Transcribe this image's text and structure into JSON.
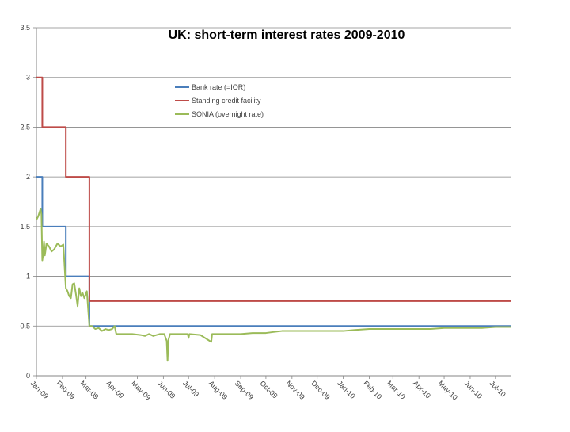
{
  "chart_data": {
    "type": "line",
    "title": "UK: short-term interest rates 2009-2010",
    "xlabel": "",
    "ylabel": "",
    "ylim": [
      0,
      3.5
    ],
    "yticks": [
      "0",
      "0.5",
      "1",
      "1.5",
      "2",
      "2.5",
      "3",
      "3.5"
    ],
    "xlim": [
      "2009-01-01",
      "2010-07-20"
    ],
    "xticks": [
      {
        "date": "2009-01-01",
        "label": "Jan-09"
      },
      {
        "date": "2009-02-01",
        "label": "Feb-09"
      },
      {
        "date": "2009-03-01",
        "label": "Mar-09"
      },
      {
        "date": "2009-04-01",
        "label": "Apr-09"
      },
      {
        "date": "2009-05-01",
        "label": "May-09"
      },
      {
        "date": "2009-06-01",
        "label": "Jun-09"
      },
      {
        "date": "2009-07-01",
        "label": "Jul-09"
      },
      {
        "date": "2009-08-01",
        "label": "Aug-09"
      },
      {
        "date": "2009-09-01",
        "label": "Sep-09"
      },
      {
        "date": "2009-10-01",
        "label": "Oct-09"
      },
      {
        "date": "2009-11-01",
        "label": "Nov-09"
      },
      {
        "date": "2009-12-01",
        "label": "Dec-09"
      },
      {
        "date": "2010-01-01",
        "label": "Jan-10"
      },
      {
        "date": "2010-02-01",
        "label": "Feb-10"
      },
      {
        "date": "2010-03-01",
        "label": "Mar-10"
      },
      {
        "date": "2010-04-01",
        "label": "Apr-10"
      },
      {
        "date": "2010-05-01",
        "label": "May-10"
      },
      {
        "date": "2010-06-01",
        "label": "Jun-10"
      },
      {
        "date": "2010-07-01",
        "label": "Jul-10"
      }
    ],
    "grid": true,
    "legend": "top-center",
    "series": [
      {
        "name": "Bank rate (=IOR)",
        "color": "#4a7ebb",
        "step": true,
        "points": [
          [
            "2009-01-01",
            2.0
          ],
          [
            "2009-01-08",
            1.5
          ],
          [
            "2009-02-05",
            1.0
          ],
          [
            "2009-03-05",
            0.5
          ],
          [
            "2010-07-20",
            0.5
          ]
        ]
      },
      {
        "name": "Standing credit facility",
        "color": "#be4b48",
        "step": true,
        "points": [
          [
            "2009-01-01",
            3.0
          ],
          [
            "2009-01-08",
            2.5
          ],
          [
            "2009-02-05",
            2.0
          ],
          [
            "2009-03-05",
            0.75
          ],
          [
            "2010-07-20",
            0.75
          ]
        ]
      },
      {
        "name": "SONIA (overnight rate)",
        "color": "#9bbb59",
        "step": false,
        "points": [
          [
            "2009-01-01",
            1.57
          ],
          [
            "2009-01-03",
            1.6
          ],
          [
            "2009-01-06",
            1.68
          ],
          [
            "2009-01-07",
            1.62
          ],
          [
            "2009-01-08",
            1.16
          ],
          [
            "2009-01-09",
            1.22
          ],
          [
            "2009-01-10",
            1.35
          ],
          [
            "2009-01-11",
            1.21
          ],
          [
            "2009-01-13",
            1.33
          ],
          [
            "2009-01-16",
            1.3
          ],
          [
            "2009-01-19",
            1.25
          ],
          [
            "2009-01-22",
            1.27
          ],
          [
            "2009-01-26",
            1.33
          ],
          [
            "2009-01-30",
            1.3
          ],
          [
            "2009-02-02",
            1.32
          ],
          [
            "2009-02-05",
            0.88
          ],
          [
            "2009-02-07",
            0.85
          ],
          [
            "2009-02-09",
            0.8
          ],
          [
            "2009-02-11",
            0.78
          ],
          [
            "2009-02-13",
            0.92
          ],
          [
            "2009-02-15",
            0.93
          ],
          [
            "2009-02-17",
            0.82
          ],
          [
            "2009-02-19",
            0.7
          ],
          [
            "2009-02-21",
            0.88
          ],
          [
            "2009-02-23",
            0.8
          ],
          [
            "2009-02-25",
            0.83
          ],
          [
            "2009-02-27",
            0.78
          ],
          [
            "2009-03-02",
            0.85
          ],
          [
            "2009-03-05",
            0.5
          ],
          [
            "2009-03-08",
            0.5
          ],
          [
            "2009-03-12",
            0.47
          ],
          [
            "2009-03-16",
            0.48
          ],
          [
            "2009-03-20",
            0.45
          ],
          [
            "2009-03-24",
            0.47
          ],
          [
            "2009-03-28",
            0.46
          ],
          [
            "2009-04-01",
            0.47
          ],
          [
            "2009-04-04",
            0.5
          ],
          [
            "2009-04-06",
            0.42
          ],
          [
            "2009-04-15",
            0.42
          ],
          [
            "2009-04-25",
            0.42
          ],
          [
            "2009-05-05",
            0.41
          ],
          [
            "2009-05-10",
            0.4
          ],
          [
            "2009-05-15",
            0.42
          ],
          [
            "2009-05-20",
            0.4
          ],
          [
            "2009-05-28",
            0.42
          ],
          [
            "2009-06-02",
            0.42
          ],
          [
            "2009-06-05",
            0.35
          ],
          [
            "2009-06-06",
            0.15
          ],
          [
            "2009-06-07",
            0.36
          ],
          [
            "2009-06-09",
            0.42
          ],
          [
            "2009-06-20",
            0.42
          ],
          [
            "2009-06-30",
            0.42
          ],
          [
            "2009-07-01",
            0.38
          ],
          [
            "2009-07-02",
            0.42
          ],
          [
            "2009-07-15",
            0.41
          ],
          [
            "2009-07-28",
            0.34
          ],
          [
            "2009-07-29",
            0.42
          ],
          [
            "2009-08-15",
            0.42
          ],
          [
            "2009-09-01",
            0.42
          ],
          [
            "2009-09-15",
            0.43
          ],
          [
            "2009-10-01",
            0.43
          ],
          [
            "2009-10-10",
            0.44
          ],
          [
            "2009-10-20",
            0.45
          ],
          [
            "2009-11-01",
            0.45
          ],
          [
            "2009-11-15",
            0.45
          ],
          [
            "2009-12-01",
            0.45
          ],
          [
            "2009-12-15",
            0.45
          ],
          [
            "2010-01-01",
            0.45
          ],
          [
            "2010-01-15",
            0.46
          ],
          [
            "2010-02-01",
            0.47
          ],
          [
            "2010-02-15",
            0.47
          ],
          [
            "2010-03-01",
            0.47
          ],
          [
            "2010-03-15",
            0.47
          ],
          [
            "2010-04-01",
            0.47
          ],
          [
            "2010-04-15",
            0.47
          ],
          [
            "2010-05-01",
            0.48
          ],
          [
            "2010-05-15",
            0.48
          ],
          [
            "2010-06-01",
            0.48
          ],
          [
            "2010-06-15",
            0.48
          ],
          [
            "2010-07-01",
            0.49
          ],
          [
            "2010-07-20",
            0.49
          ]
        ]
      }
    ]
  }
}
